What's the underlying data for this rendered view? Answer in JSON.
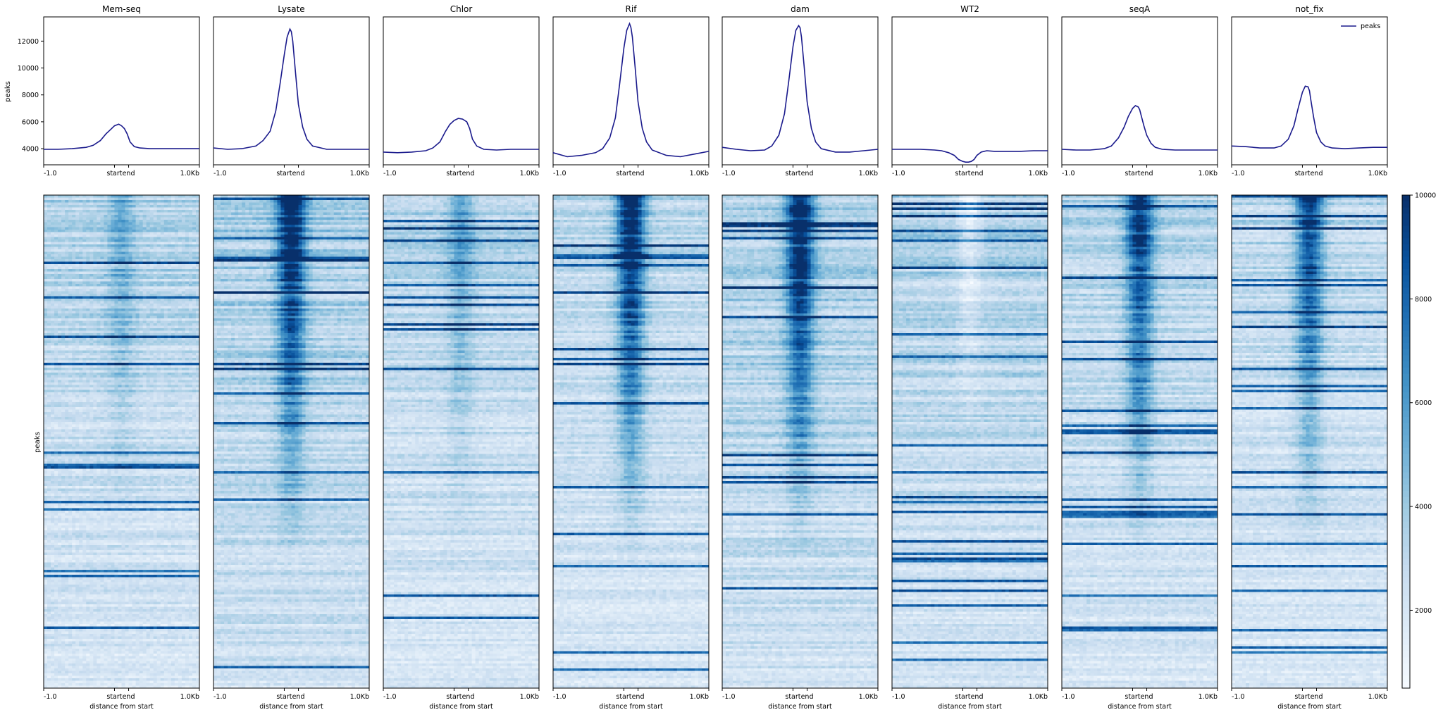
{
  "chart_data": [
    {
      "type": "line",
      "panel": "profiles",
      "x_ticks": [
        "-1.0",
        "start",
        "end",
        "1.0Kb"
      ],
      "x_positions": [
        -1000,
        0,
        200,
        1200
      ],
      "ylabel": "peaks",
      "yticks": [
        4000,
        6000,
        8000,
        10000,
        12000
      ],
      "ylim": [
        2800,
        13800
      ],
      "legend": {
        "label": "peaks",
        "placement": "top-right"
      },
      "series": [
        {
          "title": "Mem-seq",
          "x": [
            -1000,
            -800,
            -600,
            -400,
            -300,
            -200,
            -120,
            -60,
            0,
            60,
            100,
            140,
            180,
            220,
            280,
            360,
            500,
            700,
            900,
            1200
          ],
          "y": [
            3950,
            3950,
            4000,
            4100,
            4250,
            4600,
            5100,
            5400,
            5700,
            5820,
            5700,
            5500,
            5100,
            4500,
            4150,
            4050,
            4000,
            4000,
            4000,
            4000
          ]
        },
        {
          "title": "Lysate",
          "x": [
            -1000,
            -800,
            -600,
            -400,
            -300,
            -200,
            -120,
            -60,
            0,
            40,
            80,
            100,
            120,
            160,
            200,
            260,
            320,
            400,
            600,
            800,
            1000,
            1200
          ],
          "y": [
            4050,
            3950,
            4000,
            4200,
            4600,
            5300,
            6800,
            8800,
            11000,
            12300,
            12900,
            12700,
            12000,
            9600,
            7300,
            5600,
            4700,
            4200,
            3950,
            3950,
            3950,
            3950
          ]
        },
        {
          "title": "Chlor",
          "x": [
            -1000,
            -800,
            -600,
            -400,
            -300,
            -200,
            -120,
            -60,
            0,
            60,
            120,
            180,
            220,
            260,
            320,
            420,
            600,
            800,
            1000,
            1200
          ],
          "y": [
            3750,
            3700,
            3750,
            3850,
            4050,
            4500,
            5300,
            5800,
            6100,
            6250,
            6200,
            6000,
            5500,
            4700,
            4200,
            3950,
            3900,
            3950,
            3950,
            3950
          ]
        },
        {
          "title": "Rif",
          "x": [
            -1000,
            -800,
            -600,
            -400,
            -300,
            -200,
            -120,
            -60,
            0,
            40,
            80,
            100,
            120,
            160,
            200,
            260,
            320,
            400,
            600,
            800,
            1000,
            1200
          ],
          "y": [
            3700,
            3400,
            3500,
            3700,
            4000,
            4800,
            6300,
            8800,
            11500,
            12800,
            13300,
            13000,
            12300,
            10000,
            7500,
            5500,
            4500,
            3900,
            3500,
            3400,
            3600,
            3800
          ]
        },
        {
          "title": "dam",
          "x": [
            -1000,
            -800,
            -600,
            -400,
            -300,
            -200,
            -120,
            -60,
            0,
            40,
            80,
            100,
            120,
            160,
            200,
            260,
            320,
            400,
            600,
            800,
            1000,
            1200
          ],
          "y": [
            4100,
            3950,
            3850,
            3900,
            4200,
            5000,
            6600,
            9000,
            11600,
            12800,
            13150,
            13000,
            12300,
            10000,
            7500,
            5500,
            4500,
            4000,
            3750,
            3750,
            3850,
            3950
          ]
        },
        {
          "title": "WT2",
          "x": [
            -1000,
            -800,
            -600,
            -400,
            -300,
            -200,
            -120,
            -60,
            0,
            40,
            80,
            120,
            160,
            200,
            260,
            340,
            450,
            600,
            800,
            1000,
            1200
          ],
          "y": [
            3950,
            3950,
            3950,
            3900,
            3850,
            3700,
            3500,
            3200,
            3050,
            3000,
            3000,
            3050,
            3200,
            3500,
            3750,
            3850,
            3800,
            3800,
            3800,
            3850,
            3850
          ]
        },
        {
          "title": "seqA",
          "x": [
            -1000,
            -800,
            -600,
            -400,
            -300,
            -200,
            -120,
            -60,
            0,
            40,
            80,
            100,
            120,
            160,
            200,
            260,
            320,
            420,
            600,
            800,
            1000,
            1200
          ],
          "y": [
            3950,
            3900,
            3900,
            4000,
            4200,
            4800,
            5600,
            6400,
            7000,
            7200,
            7100,
            6900,
            6500,
            5700,
            5000,
            4400,
            4100,
            3950,
            3900,
            3900,
            3900,
            3900
          ]
        },
        {
          "title": "not_fix",
          "x": [
            -1000,
            -800,
            -600,
            -400,
            -300,
            -200,
            -120,
            -60,
            0,
            40,
            80,
            100,
            120,
            160,
            200,
            260,
            320,
            420,
            600,
            800,
            1000,
            1200
          ],
          "y": [
            4200,
            4150,
            4050,
            4050,
            4200,
            4700,
            5700,
            7000,
            8200,
            8650,
            8600,
            8300,
            7600,
            6300,
            5200,
            4500,
            4200,
            4050,
            4000,
            4050,
            4100,
            4100
          ]
        }
      ]
    },
    {
      "type": "heatmap",
      "panel": "heatmaps",
      "titles": [
        "Mem-seq",
        "Lysate",
        "Chlor",
        "Rif",
        "dam",
        "WT2",
        "seqA",
        "not_fix"
      ],
      "x_ticks": [
        "-1.0",
        "start",
        "end",
        "1.0Kb"
      ],
      "xlabel": "distance from start",
      "ylabel": "peaks",
      "colorbar": {
        "range": [
          500,
          10000
        ],
        "ticks": [
          2000,
          4000,
          6000,
          8000,
          10000
        ],
        "cmap": [
          "#f7fbff",
          "#deebf7",
          "#c6dbef",
          "#9ecae1",
          "#6baed6",
          "#4292c6",
          "#2171b5",
          "#08519c",
          "#08306b"
        ]
      },
      "center_signal": [
        0.25,
        0.95,
        0.3,
        0.95,
        0.95,
        0.0,
        0.8,
        0.75
      ],
      "background_level": [
        0.3,
        0.35,
        0.3,
        0.28,
        0.35,
        0.33,
        0.3,
        0.28
      ]
    }
  ],
  "colors": {
    "line": "#1a1a8c",
    "axes": "#000000"
  }
}
